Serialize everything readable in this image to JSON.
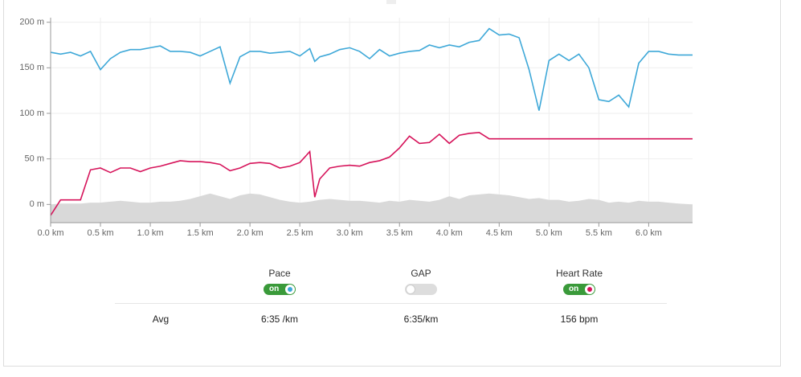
{
  "chart_data": {
    "type": "line",
    "x": [
      0,
      0.1,
      0.2,
      0.3,
      0.4,
      0.5,
      0.6,
      0.7,
      0.8,
      0.9,
      1.0,
      1.1,
      1.2,
      1.3,
      1.4,
      1.5,
      1.6,
      1.7,
      1.8,
      1.9,
      2.0,
      2.1,
      2.2,
      2.3,
      2.4,
      2.5,
      2.6,
      2.65,
      2.7,
      2.8,
      2.9,
      3.0,
      3.1,
      3.2,
      3.3,
      3.4,
      3.5,
      3.6,
      3.7,
      3.8,
      3.9,
      4.0,
      4.1,
      4.2,
      4.3,
      4.4,
      4.5,
      4.6,
      4.7,
      4.8,
      4.9,
      5.0,
      5.1,
      5.2,
      5.3,
      5.4,
      5.5,
      5.6,
      5.7,
      5.8,
      5.9,
      6.0,
      6.1,
      6.2,
      6.3,
      6.44
    ],
    "series": [
      {
        "kind": "area",
        "color": "#d9d9d9",
        "values": [
          0,
          1,
          1,
          1,
          2,
          2,
          3,
          4,
          3,
          2,
          2,
          3,
          3,
          4,
          6,
          9,
          12,
          9,
          6,
          10,
          12,
          11,
          8,
          5,
          3,
          2,
          3,
          4,
          5,
          6,
          5,
          4,
          4,
          3,
          2,
          4,
          3,
          5,
          4,
          3,
          5,
          9,
          6,
          10,
          11,
          12,
          11,
          10,
          8,
          6,
          7,
          5,
          5,
          3,
          4,
          6,
          5,
          2,
          3,
          2,
          4,
          3,
          3,
          2,
          1,
          0
        ]
      },
      {
        "kind": "line",
        "color": "#3ea8d8",
        "values": [
          167,
          165,
          167,
          163,
          168,
          148,
          160,
          167,
          170,
          170,
          172,
          174,
          168,
          168,
          167,
          163,
          168,
          173,
          133,
          162,
          168,
          168,
          166,
          167,
          168,
          163,
          171,
          157,
          162,
          165,
          170,
          172,
          168,
          160,
          170,
          163,
          166,
          168,
          169,
          175,
          172,
          175,
          173,
          178,
          180,
          193,
          186,
          187,
          183,
          148,
          103,
          158,
          165,
          158,
          165,
          150,
          115,
          113,
          120,
          107,
          155,
          168,
          168,
          165,
          164,
          164
        ]
      },
      {
        "kind": "line",
        "color": "#d6135a",
        "values": [
          -12,
          5,
          5,
          5,
          38,
          40,
          35,
          40,
          40,
          36,
          40,
          42,
          45,
          48,
          47,
          47,
          46,
          44,
          37,
          40,
          45,
          46,
          45,
          40,
          42,
          46,
          58,
          8,
          28,
          40,
          42,
          43,
          42,
          46,
          48,
          52,
          62,
          75,
          67,
          68,
          77,
          67,
          76,
          78,
          79,
          72,
          72,
          72,
          72,
          72,
          72,
          72,
          72,
          72,
          72,
          72,
          72,
          72,
          72,
          72,
          72,
          72,
          72,
          72,
          72,
          72
        ]
      }
    ],
    "xlim": [
      0,
      6.44
    ],
    "ylim": [
      -20,
      205
    ],
    "xticks": [
      {
        "value": 0,
        "label": "0.0 km"
      },
      {
        "value": 0.5,
        "label": "0.5 km"
      },
      {
        "value": 1,
        "label": "1.0 km"
      },
      {
        "value": 1.5,
        "label": "1.5 km"
      },
      {
        "value": 2,
        "label": "2.0 km"
      },
      {
        "value": 2.5,
        "label": "2.5 km"
      },
      {
        "value": 3,
        "label": "3.0 km"
      },
      {
        "value": 3.5,
        "label": "3.5 km"
      },
      {
        "value": 4,
        "label": "4.0 km"
      },
      {
        "value": 4.5,
        "label": "4.5 km"
      },
      {
        "value": 5,
        "label": "5.0 km"
      },
      {
        "value": 5.5,
        "label": "5.5 km"
      },
      {
        "value": 6,
        "label": "6.0 km"
      }
    ],
    "yticks": [
      {
        "value": 0,
        "label": "0 m"
      },
      {
        "value": 50,
        "label": "50 m"
      },
      {
        "value": 100,
        "label": "100 m"
      },
      {
        "value": 150,
        "label": "150 m"
      },
      {
        "value": 200,
        "label": "200 m"
      }
    ],
    "grid": true
  },
  "controls": [
    {
      "label": "Pace",
      "state": "on",
      "series": 1
    },
    {
      "label": "GAP"
    },
    {
      "label": "Heart Rate",
      "state": "on",
      "series": 2
    }
  ],
  "summary": {
    "label": "Avg",
    "values": [
      "6:35 /km",
      "6:35/km",
      "156 bpm"
    ]
  }
}
